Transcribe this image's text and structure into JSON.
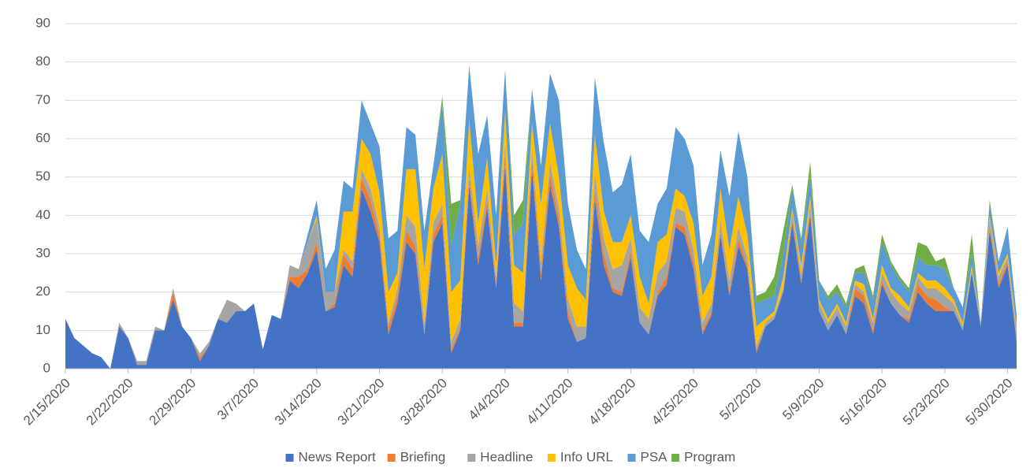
{
  "chart_data": {
    "type": "stacked_area",
    "categories": [
      "2/15/2020",
      null,
      null,
      null,
      null,
      null,
      null,
      "2/22/2020",
      null,
      null,
      null,
      null,
      null,
      null,
      "2/29/2020",
      null,
      null,
      null,
      null,
      null,
      null,
      "3/7/2020",
      null,
      null,
      null,
      null,
      null,
      null,
      "3/14/2020",
      null,
      null,
      null,
      null,
      null,
      null,
      "3/21/2020",
      null,
      null,
      null,
      null,
      null,
      null,
      "3/28/2020",
      null,
      null,
      null,
      null,
      null,
      null,
      "4/4/2020",
      null,
      null,
      null,
      null,
      null,
      null,
      "4/11/2020",
      null,
      null,
      null,
      null,
      null,
      null,
      "4/18/2020",
      null,
      null,
      null,
      null,
      null,
      null,
      "4/25/2020",
      null,
      null,
      null,
      null,
      null,
      null,
      "5/2/2020",
      null,
      null,
      null,
      null,
      null,
      null,
      "5/9/2020",
      null,
      null,
      null,
      null,
      null,
      null,
      "5/16/2020",
      null,
      null,
      null,
      null,
      null,
      null,
      "5/23/2020",
      null,
      null,
      null,
      null,
      null,
      null,
      "5/30/2020",
      null
    ],
    "series": [
      {
        "name": "News Report",
        "color": "#4472c4",
        "values": [
          13,
          8,
          6,
          4,
          3,
          0,
          11,
          8,
          1,
          1,
          10,
          10,
          18,
          11,
          8,
          2,
          6,
          13,
          12,
          15,
          15,
          17,
          5,
          14,
          13,
          23,
          21,
          25,
          31,
          15,
          16,
          27,
          24,
          47,
          41,
          33,
          9,
          17,
          33,
          30,
          9,
          33,
          38,
          4,
          10,
          48,
          27,
          42,
          21,
          53,
          11,
          11,
          52,
          23,
          48,
          37,
          13,
          7,
          8,
          44,
          27,
          20,
          19,
          29,
          12,
          9,
          19,
          22,
          37,
          35,
          26,
          9,
          14,
          35,
          19,
          32,
          26,
          4,
          11,
          13,
          20,
          38,
          22,
          40,
          15,
          10,
          14,
          9,
          19,
          17,
          9,
          22,
          17,
          14,
          12,
          20,
          17,
          15,
          15,
          15,
          10,
          25,
          11,
          36,
          21,
          27,
          7
        ]
      },
      {
        "name": "Briefing",
        "color": "#ed7d31",
        "values": [
          0,
          0,
          0,
          0,
          0,
          0,
          0,
          0,
          0,
          0,
          0,
          0,
          2,
          0,
          0,
          1,
          0,
          0,
          0,
          0,
          0,
          0,
          0,
          0,
          0,
          1,
          3,
          1,
          2,
          0,
          1,
          3,
          2,
          3,
          3,
          2,
          2,
          2,
          3,
          2,
          0,
          2,
          2,
          1,
          1,
          2,
          2,
          2,
          1,
          3,
          1,
          1,
          3,
          2,
          3,
          2,
          2,
          0,
          0,
          3,
          3,
          1,
          1,
          2,
          0,
          0,
          1,
          2,
          1,
          2,
          2,
          1,
          1,
          1,
          1,
          2,
          1,
          1,
          0,
          0,
          0,
          1,
          1,
          1,
          0,
          0,
          0,
          0,
          2,
          2,
          1,
          1,
          0,
          0,
          1,
          2,
          2,
          3,
          1,
          0,
          0,
          0,
          0,
          1,
          1,
          1,
          0
        ]
      },
      {
        "name": "Headline",
        "color": "#a5a5a5",
        "values": [
          0,
          0,
          0,
          0,
          0,
          0,
          1,
          0,
          1,
          1,
          1,
          0,
          1,
          0,
          0,
          1,
          1,
          0,
          6,
          2,
          0,
          0,
          0,
          0,
          0,
          3,
          2,
          7,
          6,
          5,
          3,
          1,
          2,
          2,
          3,
          2,
          1,
          2,
          4,
          5,
          3,
          3,
          3,
          2,
          2,
          3,
          3,
          3,
          2,
          3,
          5,
          3,
          3,
          3,
          3,
          3,
          3,
          4,
          3,
          4,
          4,
          5,
          7,
          3,
          4,
          4,
          5,
          4,
          4,
          4,
          3,
          2,
          2,
          3,
          3,
          3,
          2,
          1,
          1,
          1,
          1,
          2,
          2,
          2,
          2,
          2,
          2,
          2,
          1,
          1,
          2,
          2,
          3,
          3,
          2,
          2,
          2,
          3,
          3,
          2,
          1,
          1,
          1,
          2,
          2,
          1,
          3
        ]
      },
      {
        "name": "Info URL",
        "color": "#ffc000",
        "values": [
          0,
          0,
          0,
          0,
          0,
          0,
          0,
          0,
          0,
          0,
          0,
          0,
          0,
          0,
          0,
          0,
          0,
          0,
          0,
          0,
          0,
          0,
          0,
          0,
          0,
          0,
          0,
          0,
          1,
          0,
          0,
          10,
          13,
          8,
          9,
          9,
          8,
          4,
          12,
          15,
          14,
          9,
          13,
          13,
          10,
          12,
          6,
          8,
          3,
          8,
          10,
          10,
          6,
          15,
          10,
          8,
          9,
          10,
          7,
          10,
          7,
          7,
          6,
          6,
          8,
          4,
          8,
          7,
          5,
          4,
          7,
          7,
          7,
          8,
          8,
          8,
          6,
          5,
          1,
          1,
          3,
          1,
          2,
          2,
          1,
          1,
          1,
          1,
          1,
          2,
          1,
          2,
          1,
          2,
          1,
          1,
          2,
          2,
          2,
          1,
          1,
          1,
          0,
          1,
          1,
          1,
          1
        ]
      },
      {
        "name": "PSA",
        "color": "#5b9bd5",
        "values": [
          0,
          0,
          0,
          0,
          0,
          0,
          0,
          0,
          0,
          0,
          0,
          0,
          0,
          0,
          0,
          0,
          0,
          0,
          0,
          0,
          0,
          0,
          0,
          0,
          0,
          0,
          0,
          2,
          4,
          6,
          11,
          8,
          6,
          10,
          8,
          12,
          14,
          11,
          11,
          9,
          10,
          6,
          13,
          12,
          20,
          14,
          18,
          11,
          13,
          11,
          8,
          13,
          9,
          10,
          13,
          20,
          16,
          10,
          8,
          15,
          18,
          13,
          15,
          16,
          12,
          16,
          10,
          12,
          16,
          15,
          15,
          8,
          11,
          10,
          14,
          17,
          15,
          6,
          5,
          4,
          6,
          5,
          6,
          5,
          5,
          5,
          3,
          4,
          2,
          3,
          5,
          6,
          6,
          4,
          4,
          4,
          4,
          4,
          5,
          3,
          4,
          3,
          0,
          3,
          3,
          7,
          3
        ]
      },
      {
        "name": "Program",
        "color": "#70ad47",
        "values": [
          0,
          0,
          0,
          0,
          0,
          0,
          0,
          0,
          0,
          0,
          0,
          0,
          0,
          0,
          0,
          0,
          0,
          0,
          0,
          0,
          0,
          0,
          0,
          0,
          0,
          0,
          0,
          0,
          0,
          0,
          0,
          0,
          0,
          0,
          0,
          0,
          0,
          0,
          0,
          0,
          0,
          0,
          2,
          11,
          1,
          0,
          0,
          0,
          0,
          0,
          5,
          6,
          0,
          0,
          0,
          0,
          0,
          0,
          0,
          0,
          0,
          0,
          0,
          0,
          0,
          0,
          0,
          0,
          0,
          0,
          0,
          0,
          0,
          0,
          0,
          0,
          0,
          2,
          2,
          5,
          6,
          1,
          1,
          4,
          0,
          1,
          2,
          1,
          1,
          2,
          1,
          2,
          1,
          1,
          1,
          4,
          5,
          1,
          3,
          0,
          0,
          5,
          0,
          1,
          0,
          0,
          0
        ]
      }
    ],
    "ylim": [
      0,
      90
    ],
    "yticks": [
      0,
      10,
      20,
      30,
      40,
      50,
      60,
      70,
      80,
      90
    ],
    "grid": true,
    "legend": "bottom"
  }
}
